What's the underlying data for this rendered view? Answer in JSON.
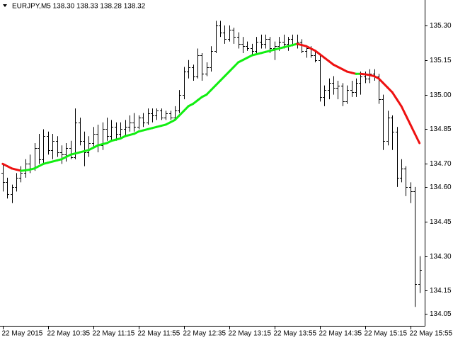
{
  "chart_data": {
    "type": "ohlc",
    "title": "EURJPY,M5  138.30 138.33 138.28 138.32",
    "bar_color": "#000000",
    "open": [
      134.66,
      134.62,
      134.57,
      134.6,
      134.64,
      134.66,
      134.7,
      134.68,
      134.77,
      134.72,
      134.82,
      134.76,
      134.8,
      134.75,
      134.74,
      134.77,
      134.73,
      134.88,
      134.8,
      134.75,
      134.79,
      134.83,
      134.78,
      134.85,
      134.82,
      134.86,
      134.83,
      134.85,
      134.86,
      134.88,
      134.86,
      134.9,
      134.88,
      134.92,
      134.91,
      134.93,
      134.9,
      134.92,
      134.9,
      134.93,
      135.0,
      135.1,
      135.12,
      135.08,
      135.17,
      135.09,
      135.12,
      135.19,
      135.3,
      135.27,
      135.24,
      135.28,
      135.25,
      135.22,
      135.21,
      135.2,
      135.19,
      135.23,
      135.22,
      135.24,
      135.2,
      135.21,
      135.23,
      135.22,
      135.24,
      135.22,
      135.23,
      135.19,
      135.2,
      135.17,
      135.15,
      134.99,
      135.02,
      135.05,
      135.03,
      135.04,
      134.97,
      135.02,
      135.01,
      135.05,
      135.08,
      135.07,
      135.09,
      135.08,
      134.98,
      134.8,
      134.9,
      134.84,
      134.64,
      134.68,
      134.6,
      134.58,
      134.18
    ],
    "high": [
      134.7,
      134.64,
      134.61,
      134.66,
      134.69,
      134.72,
      134.74,
      134.79,
      134.83,
      134.85,
      134.84,
      134.83,
      134.82,
      134.78,
      134.79,
      134.8,
      134.94,
      134.9,
      134.84,
      134.82,
      134.86,
      134.87,
      134.88,
      134.9,
      134.89,
      134.88,
      134.88,
      134.89,
      134.91,
      134.92,
      134.91,
      134.92,
      134.94,
      134.94,
      134.94,
      134.94,
      134.93,
      134.93,
      134.95,
      135.02,
      135.12,
      135.15,
      135.13,
      135.2,
      135.18,
      135.14,
      135.21,
      135.32,
      135.32,
      135.3,
      135.3,
      135.29,
      135.27,
      135.25,
      135.23,
      135.22,
      135.25,
      135.26,
      135.26,
      135.25,
      135.23,
      135.25,
      135.26,
      135.25,
      135.26,
      135.26,
      135.24,
      135.21,
      135.21,
      135.19,
      135.17,
      135.04,
      135.07,
      135.08,
      135.06,
      135.05,
      135.04,
      135.06,
      135.07,
      135.1,
      135.1,
      135.11,
      135.11,
      135.09,
      135.0,
      134.93,
      134.91,
      134.86,
      134.72,
      134.69,
      134.62,
      134.6,
      134.3
    ],
    "low": [
      134.58,
      134.55,
      134.53,
      134.58,
      134.62,
      134.64,
      134.66,
      134.67,
      134.7,
      134.7,
      134.74,
      134.72,
      134.73,
      134.7,
      134.71,
      134.72,
      134.72,
      134.78,
      134.69,
      134.73,
      134.77,
      134.75,
      134.76,
      134.8,
      134.8,
      134.8,
      134.81,
      134.82,
      134.84,
      134.84,
      134.85,
      134.86,
      134.87,
      134.88,
      134.89,
      134.89,
      134.89,
      134.89,
      134.89,
      134.92,
      134.98,
      135.07,
      135.06,
      135.07,
      135.06,
      135.08,
      135.1,
      135.18,
      135.25,
      135.22,
      135.23,
      135.22,
      135.2,
      135.18,
      135.19,
      135.17,
      135.18,
      135.2,
      135.2,
      135.18,
      135.15,
      135.19,
      135.2,
      135.19,
      135.21,
      135.2,
      135.18,
      135.16,
      135.16,
      135.14,
      134.97,
      134.95,
      134.98,
      135.0,
      134.98,
      134.95,
      134.96,
      134.99,
      134.99,
      135.0,
      135.05,
      135.05,
      135.06,
      134.96,
      134.76,
      134.78,
      134.76,
      134.6,
      134.62,
      134.56,
      134.53,
      134.08,
      134.14
    ],
    "close": [
      134.62,
      134.57,
      134.6,
      134.64,
      134.66,
      134.7,
      134.68,
      134.77,
      134.72,
      134.82,
      134.76,
      134.8,
      134.75,
      134.74,
      134.77,
      134.73,
      134.88,
      134.8,
      134.75,
      134.79,
      134.83,
      134.78,
      134.85,
      134.82,
      134.86,
      134.83,
      134.85,
      134.86,
      134.88,
      134.86,
      134.9,
      134.88,
      134.92,
      134.91,
      134.93,
      134.9,
      134.92,
      134.9,
      134.93,
      135.0,
      135.1,
      135.12,
      135.08,
      135.17,
      135.09,
      135.12,
      135.19,
      135.3,
      135.27,
      135.24,
      135.28,
      135.25,
      135.22,
      135.21,
      135.2,
      135.19,
      135.23,
      135.22,
      135.24,
      135.2,
      135.21,
      135.23,
      135.22,
      135.24,
      135.22,
      135.23,
      135.19,
      135.2,
      135.17,
      135.15,
      134.99,
      135.02,
      135.05,
      135.03,
      135.04,
      134.97,
      135.02,
      135.01,
      135.05,
      135.08,
      135.07,
      135.09,
      135.08,
      134.98,
      134.8,
      134.9,
      134.84,
      134.64,
      134.68,
      134.6,
      134.58,
      134.18,
      134.24
    ],
    "ma": {
      "up_color": "#11ee11",
      "down_color": "#ee1111",
      "values": [
        134.7,
        134.69,
        134.68,
        134.675,
        134.67,
        134.672,
        134.675,
        134.68,
        134.69,
        134.7,
        134.705,
        134.71,
        134.715,
        134.72,
        134.73,
        134.74,
        134.745,
        134.75,
        134.755,
        134.76,
        134.77,
        134.78,
        134.785,
        134.79,
        134.8,
        134.805,
        134.81,
        134.82,
        134.825,
        134.83,
        134.84,
        134.845,
        134.85,
        134.855,
        134.86,
        134.865,
        134.87,
        134.88,
        134.89,
        134.91,
        134.93,
        134.95,
        134.96,
        134.975,
        134.99,
        135.0,
        135.02,
        135.04,
        135.06,
        135.08,
        135.1,
        135.12,
        135.14,
        135.15,
        135.16,
        135.17,
        135.175,
        135.18,
        135.185,
        135.19,
        135.195,
        135.2,
        135.205,
        135.21,
        135.215,
        135.22,
        135.215,
        135.21,
        135.2,
        135.19,
        135.175,
        135.16,
        135.145,
        135.13,
        135.12,
        135.11,
        135.1,
        135.095,
        135.09,
        135.09,
        135.088,
        135.085,
        135.08,
        135.07,
        135.05,
        135.03,
        135.01,
        134.98,
        134.95,
        134.91,
        134.87,
        134.83,
        134.79
      ]
    },
    "xlim": [
      -0.6,
      93.15
    ],
    "xticks": [
      {
        "value": 0,
        "label": "22 May 2015"
      },
      {
        "value": 10,
        "label": "22 May 10:35"
      },
      {
        "value": 20,
        "label": "22 May 11:15"
      },
      {
        "value": 30,
        "label": "22 May 11:55"
      },
      {
        "value": 40,
        "label": "22 May 12:35"
      },
      {
        "value": 50,
        "label": "22 May 13:15"
      },
      {
        "value": 60,
        "label": "22 May 13:55"
      },
      {
        "value": 70,
        "label": "22 May 14:35"
      },
      {
        "value": 80,
        "label": "22 May 15:15"
      },
      {
        "value": 90,
        "label": "22 May 15:55"
      }
    ],
    "ylim": [
      133.998,
      135.404
    ],
    "yticks": [
      {
        "value": 135.3,
        "label": "135.30"
      },
      135.15,
      {
        "value": 135.0,
        "label": "135.00"
      },
      134.85,
      {
        "value": 134.7,
        "label": "134.70"
      },
      {
        "value": 134.6,
        "label": "134.60"
      },
      134.45,
      {
        "value": 134.3,
        "label": "134.30"
      },
      134.15,
      134.05
    ]
  }
}
